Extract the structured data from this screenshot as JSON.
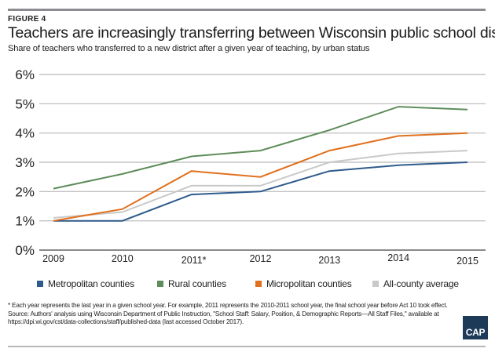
{
  "figure_label": "FIGURE 4",
  "title": "Teachers are increasingly transferring between Wisconsin public school districts",
  "subtitle": "Share of teachers who transferred to a new district after a given year of teaching, by urban status",
  "footnotes": {
    "note": "* Each year represents the last year in a given school year. For example, 2011 represents the 2010-2011 school year, the final school year before Act 10 took effect.",
    "source": "Source: Authors' analysis using Wisconsin Department of Public Instruction, \"School Staff: Salary, Position, & Demographic Reports—All Staff Files,\" available at https://dpi.wi.gov/cst/data-collections/staff/published-data (last accessed October 2017)."
  },
  "logo": {
    "text": "CAP",
    "color": "#1d3a58"
  },
  "chart_data": {
    "type": "line",
    "title": "Teachers are increasingly transferring between Wisconsin public school districts",
    "subtitle": "Share of teachers who transferred to a new district after a given year of teaching, by urban status",
    "xlabel": "",
    "ylabel": "",
    "categories": [
      "2009",
      "2010",
      "2011*",
      "2012",
      "2013",
      "2014",
      "2015"
    ],
    "ylim": [
      0,
      6
    ],
    "yticks": [
      0,
      1,
      2,
      3,
      4,
      5,
      6
    ],
    "ytick_labels": [
      "0%",
      "1%",
      "2%",
      "3%",
      "4%",
      "5%",
      "6%"
    ],
    "grid": true,
    "legend_position": "bottom",
    "series": [
      {
        "name": "Metropolitan counties",
        "color": "#2e5b8c",
        "values": [
          1.0,
          1.0,
          1.9,
          2.0,
          2.7,
          2.9,
          3.0
        ]
      },
      {
        "name": "Rural counties",
        "color": "#5e8c5a",
        "values": [
          2.1,
          2.6,
          3.2,
          3.4,
          4.1,
          4.9,
          4.8
        ]
      },
      {
        "name": "Micropolitan counties",
        "color": "#e0701e",
        "values": [
          1.0,
          1.4,
          2.7,
          2.5,
          3.4,
          3.9,
          4.0
        ]
      },
      {
        "name": "All-county average",
        "color": "#c9c9c9",
        "values": [
          1.1,
          1.3,
          2.2,
          2.2,
          3.0,
          3.3,
          3.4
        ]
      }
    ]
  }
}
